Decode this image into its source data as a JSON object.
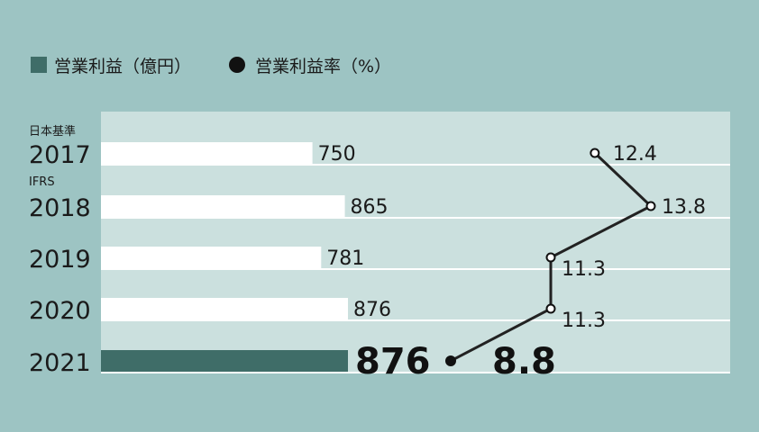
{
  "legend": {
    "bar_label": "営業利益（億円）",
    "line_label": "営業利益率（%）"
  },
  "notes": {
    "standard_2017": "日本基準",
    "standard_2018": "IFRS"
  },
  "colors": {
    "background": "#9dc4c3",
    "plot_area": "#cbe0de",
    "bar_normal": "#ffffff",
    "bar_highlight": "#3f6d68",
    "line": "#222222"
  },
  "chart_data": {
    "type": "bar",
    "orientation": "horizontal",
    "categories": [
      "2017",
      "2018",
      "2019",
      "2020",
      "2021"
    ],
    "highlight_index": 4,
    "series": [
      {
        "name": "営業利益（億円）",
        "type": "bar",
        "values": [
          750,
          865,
          781,
          876,
          876
        ],
        "labels": [
          "750",
          "865",
          "781",
          "876",
          "876"
        ]
      },
      {
        "name": "営業利益率（%）",
        "type": "line",
        "values": [
          12.4,
          13.8,
          11.3,
          11.3,
          8.8
        ],
        "labels": [
          "12.4",
          "13.8",
          "11.3",
          "11.3",
          "8.8"
        ]
      }
    ],
    "grid": true
  }
}
